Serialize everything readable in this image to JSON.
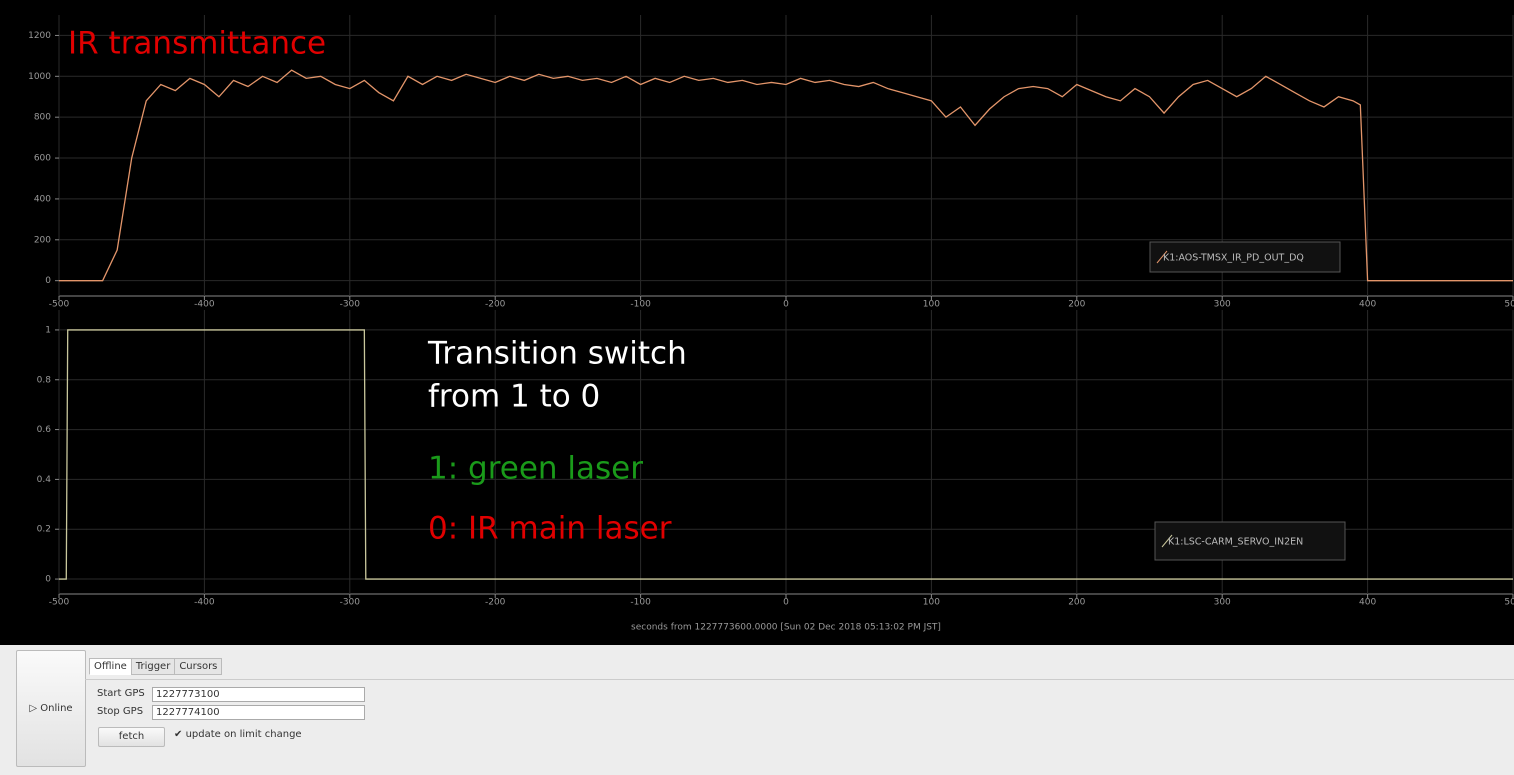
{
  "chart_data": [
    {
      "type": "line",
      "x": [
        -500,
        -490,
        -480,
        -470,
        -460,
        -450,
        -440,
        -430,
        -420,
        -410,
        -400,
        -390,
        -380,
        -370,
        -360,
        -350,
        -340,
        -330,
        -320,
        -310,
        -300,
        -290,
        -280,
        -270,
        -260,
        -250,
        -240,
        -230,
        -220,
        -210,
        -200,
        -190,
        -180,
        -170,
        -160,
        -150,
        -140,
        -130,
        -120,
        -110,
        -100,
        -90,
        -80,
        -70,
        -60,
        -50,
        -40,
        -30,
        -20,
        -10,
        0,
        10,
        20,
        30,
        40,
        50,
        60,
        70,
        80,
        90,
        100,
        110,
        120,
        130,
        140,
        150,
        160,
        170,
        180,
        190,
        200,
        210,
        220,
        230,
        240,
        250,
        260,
        270,
        280,
        290,
        300,
        310,
        320,
        330,
        340,
        350,
        360,
        370,
        380,
        390,
        395,
        400,
        410,
        420,
        430,
        440,
        450,
        460,
        470,
        480,
        490,
        500
      ],
      "series": [
        {
          "name": "K1:AOS-TMSX_IR_PD_OUT_DQ",
          "color": "#e3956a",
          "values": [
            0,
            0,
            0,
            0,
            150,
            600,
            880,
            960,
            930,
            990,
            960,
            900,
            980,
            950,
            1000,
            970,
            1030,
            990,
            1000,
            960,
            940,
            980,
            920,
            880,
            1000,
            960,
            1000,
            980,
            1010,
            990,
            970,
            1000,
            980,
            1010,
            990,
            1000,
            980,
            990,
            970,
            1000,
            960,
            990,
            970,
            1000,
            980,
            990,
            970,
            980,
            960,
            970,
            960,
            990,
            970,
            980,
            960,
            950,
            970,
            940,
            920,
            900,
            880,
            800,
            850,
            760,
            840,
            900,
            940,
            950,
            940,
            900,
            960,
            930,
            900,
            880,
            940,
            900,
            820,
            900,
            960,
            980,
            940,
            900,
            940,
            1000,
            960,
            920,
            880,
            850,
            900,
            880,
            860,
            0,
            0,
            0,
            0,
            0,
            0,
            0,
            0,
            0,
            0,
            0
          ]
        }
      ],
      "xlim": [
        -500,
        500
      ],
      "xticks": [
        -500,
        -400,
        -300,
        -200,
        -100,
        0,
        100,
        200,
        300,
        400,
        500
      ],
      "ylim": [
        -75,
        1300
      ],
      "yticks": [
        0,
        200,
        400,
        600,
        800,
        1000,
        1200
      ],
      "grid": true,
      "annotations": [
        {
          "text": "IR transmittance",
          "color": "#e00000"
        }
      ]
    },
    {
      "type": "line",
      "x": [
        -500,
        -495,
        -494,
        -290,
        -289,
        500
      ],
      "series": [
        {
          "name": "K1:LSC-CARM_SERVO_IN2EN",
          "color": "#c9c79c",
          "values": [
            0,
            0,
            1,
            1,
            0,
            0
          ]
        }
      ],
      "xlim": [
        -500,
        500
      ],
      "xticks": [
        -500,
        -400,
        -300,
        -200,
        -100,
        0,
        100,
        200,
        300,
        400,
        500
      ],
      "ylim": [
        -0.06,
        1.08
      ],
      "yticks": [
        0,
        0.2,
        0.4,
        0.6,
        0.8,
        1
      ],
      "grid": true,
      "xlabel": "seconds from 1227773600.0000 [Sun 02 Dec 2018 05:13:02 PM JST]",
      "annotations": [
        {
          "text": "Transition switch",
          "color": "#ffffff"
        },
        {
          "text": "from 1 to 0",
          "color": "#ffffff"
        },
        {
          "text": "1: green laser",
          "color": "#1a9a1a"
        },
        {
          "text": "0: IR main laser",
          "color": "#e00000"
        }
      ]
    }
  ],
  "controls": {
    "online": "Online",
    "tabs": [
      "Offline",
      "Trigger",
      "Cursors"
    ],
    "start_label": "Start GPS",
    "start_value": "1227773100",
    "stop_label": "Stop GPS",
    "stop_value": "1227774100",
    "fetch": "fetch",
    "checkbox": "update on limit change"
  }
}
